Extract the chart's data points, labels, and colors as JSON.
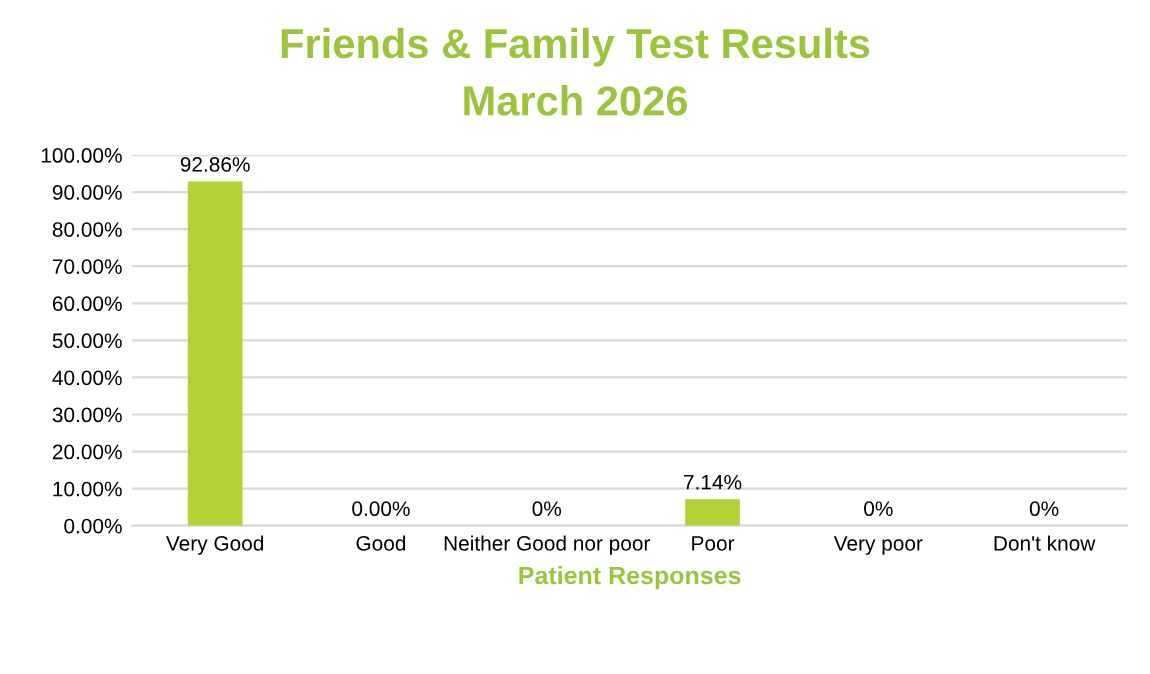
{
  "chart_data": {
    "type": "bar",
    "title": "Friends & Family Test Results",
    "subtitle": "March 2026",
    "xlabel": "Patient Responses",
    "categories": [
      "Very Good",
      "Good",
      "Neither Good nor poor",
      "Poor",
      "Very poor",
      "Don't know"
    ],
    "values": [
      92.86,
      0,
      0,
      7.14,
      0,
      0
    ],
    "value_labels": [
      "92.86%",
      "0.00%",
      "0%",
      "7.14%",
      "0%",
      "0%"
    ],
    "color": "#b2d235",
    "ylim": [
      0,
      100
    ],
    "yticks": [
      {
        "value": 0,
        "label": "0.00%"
      },
      {
        "value": 10,
        "label": "10.00%"
      },
      {
        "value": 20,
        "label": "20.00%"
      },
      {
        "value": 30,
        "label": "30.00%"
      },
      {
        "value": 40,
        "label": "40.00%"
      },
      {
        "value": 50,
        "label": "50.00%"
      },
      {
        "value": 60,
        "label": "60.00%"
      },
      {
        "value": 70,
        "label": "70.00%"
      },
      {
        "value": 80,
        "label": "80.00%"
      },
      {
        "value": 90,
        "label": "90.00%"
      },
      {
        "value": 100,
        "label": "100.00%"
      }
    ],
    "grid": "y"
  }
}
